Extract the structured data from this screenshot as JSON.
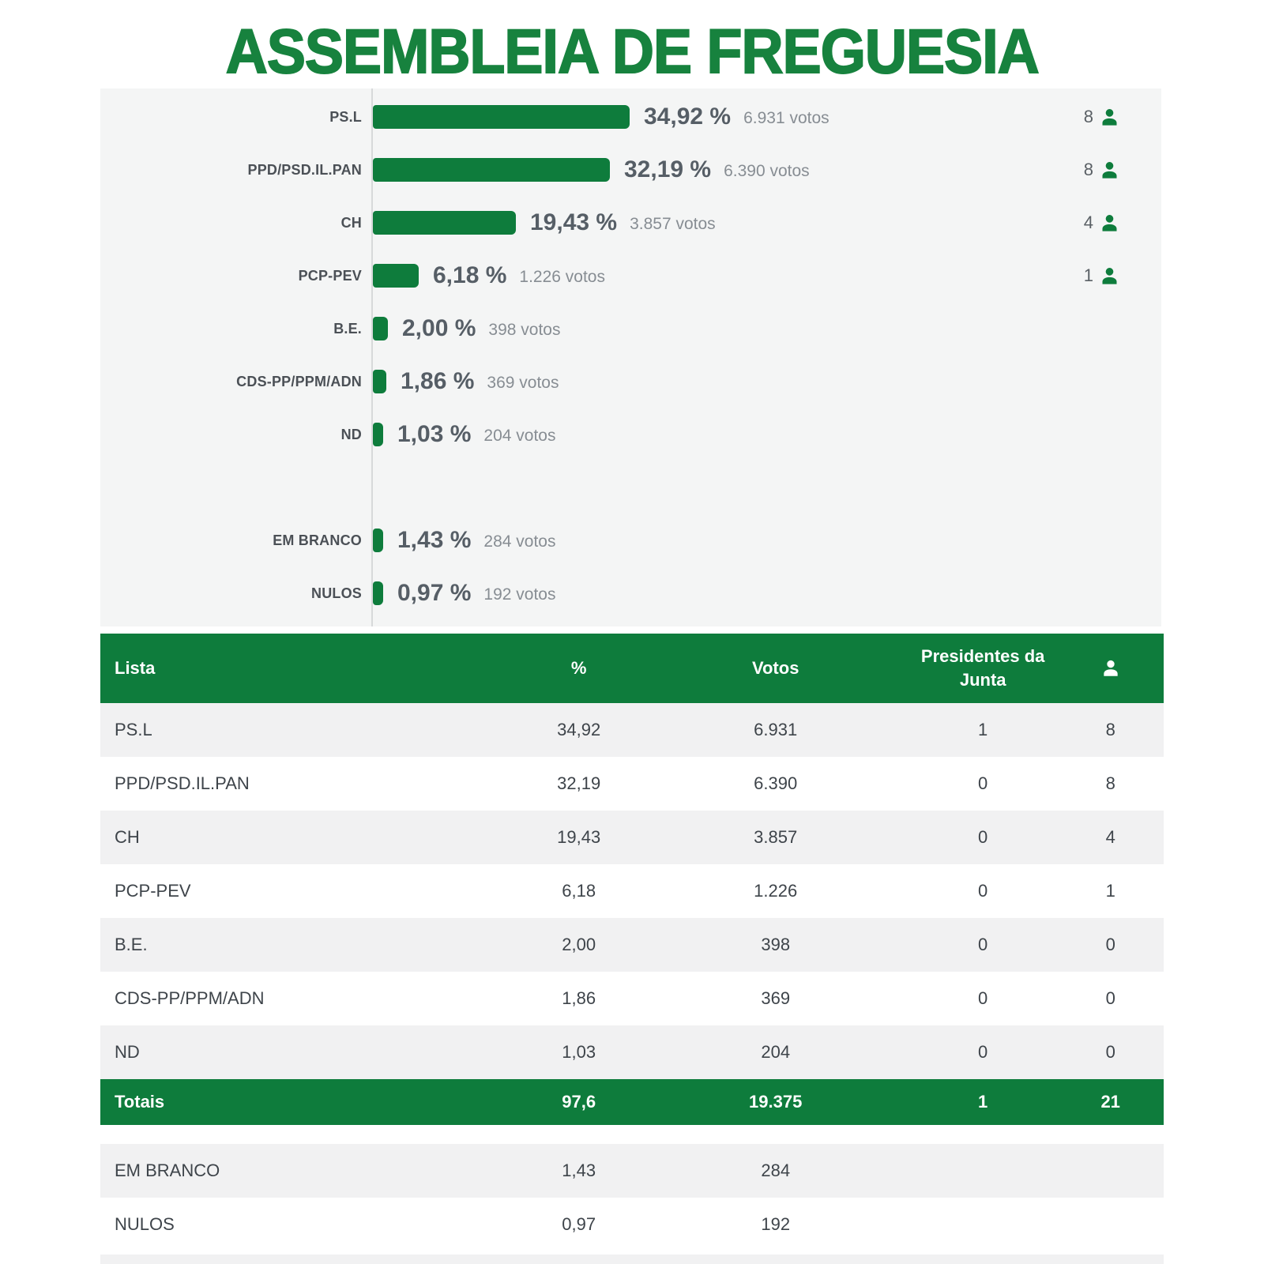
{
  "title": "ASSEMBLEIA DE FREGUESIA",
  "colors": {
    "green": "#0e7c3c",
    "title_green": "#17823e",
    "panel_bg": "#f4f5f5",
    "zebra_gray": "#f1f1f2",
    "pct_text": "#565e66",
    "votes_text": "#878d93"
  },
  "chart_data": {
    "type": "bar",
    "orientation": "horizontal",
    "title": "ASSEMBLEIA DE FREGUESIA",
    "value_unit": "percent",
    "xlim": [
      0,
      40
    ],
    "grid": false,
    "legend": "none",
    "categories": [
      "PS.L",
      "PPD/PSD.IL.PAN",
      "CH",
      "PCP-PEV",
      "B.E.",
      "CDS-PP/PPM/ADN",
      "ND",
      "EM BRANCO",
      "NULOS"
    ],
    "values": [
      34.92,
      32.19,
      19.43,
      6.18,
      2.0,
      1.86,
      1.03,
      1.43,
      0.97
    ],
    "votes": [
      6931,
      6390,
      3857,
      1226,
      398,
      369,
      204,
      284,
      192
    ],
    "seats": [
      8,
      8,
      4,
      1,
      null,
      null,
      null,
      null,
      null
    ]
  },
  "chart": {
    "bars": [
      {
        "label": "PS.L",
        "value": 34.92,
        "pct_label": "34,92 %",
        "votes_label": "6.931 votos",
        "seats": "8",
        "slot": 0
      },
      {
        "label": "PPD/PSD.IL.PAN",
        "value": 32.19,
        "pct_label": "32,19 %",
        "votes_label": "6.390 votos",
        "seats": "8",
        "slot": 1
      },
      {
        "label": "CH",
        "value": 19.43,
        "pct_label": "19,43 %",
        "votes_label": "3.857 votos",
        "seats": "4",
        "slot": 2
      },
      {
        "label": "PCP-PEV",
        "value": 6.18,
        "pct_label": "6,18 %",
        "votes_label": "1.226 votos",
        "seats": "1",
        "slot": 3
      },
      {
        "label": "B.E.",
        "value": 2.0,
        "pct_label": "2,00 %",
        "votes_label": "398 votos",
        "seats": null,
        "slot": 4
      },
      {
        "label": "CDS-PP/PPM/ADN",
        "value": 1.86,
        "pct_label": "1,86 %",
        "votes_label": "369 votos",
        "seats": null,
        "slot": 5
      },
      {
        "label": "ND",
        "value": 1.03,
        "pct_label": "1,03 %",
        "votes_label": "204 votos",
        "seats": null,
        "slot": 6
      },
      {
        "label": "EM BRANCO",
        "value": 1.43,
        "pct_label": "1,43 %",
        "votes_label": "284 votos",
        "seats": null,
        "slot": 8
      },
      {
        "label": "NULOS",
        "value": 0.97,
        "pct_label": "0,97 %",
        "votes_label": "192 votos",
        "seats": null,
        "slot": 9
      }
    ]
  },
  "table": {
    "headers": {
      "lista": "Lista",
      "pct": "%",
      "votos": "Votos",
      "presidentes": "Presidentes da Junta",
      "seats_icon": "person-icon"
    },
    "rows": [
      {
        "lista": "PS.L",
        "pct": "34,92",
        "votos": "6.931",
        "presidentes": "1",
        "seats": "8"
      },
      {
        "lista": "PPD/PSD.IL.PAN",
        "pct": "32,19",
        "votos": "6.390",
        "presidentes": "0",
        "seats": "8"
      },
      {
        "lista": "CH",
        "pct": "19,43",
        "votos": "3.857",
        "presidentes": "0",
        "seats": "4"
      },
      {
        "lista": "PCP-PEV",
        "pct": "6,18",
        "votos": "1.226",
        "presidentes": "0",
        "seats": "1"
      },
      {
        "lista": "B.E.",
        "pct": "2,00",
        "votos": "398",
        "presidentes": "0",
        "seats": "0"
      },
      {
        "lista": "CDS-PP/PPM/ADN",
        "pct": "1,86",
        "votos": "369",
        "presidentes": "0",
        "seats": "0"
      },
      {
        "lista": "ND",
        "pct": "1,03",
        "votos": "204",
        "presidentes": "0",
        "seats": "0"
      }
    ],
    "totals": {
      "lista": "Totais",
      "pct": "97,6",
      "votos": "19.375",
      "presidentes": "1",
      "seats": "21"
    },
    "extra_rows": [
      {
        "lista": "EM BRANCO",
        "pct": "1,43",
        "votos": "284",
        "presidentes": "",
        "seats": ""
      },
      {
        "lista": "NULOS",
        "pct": "0,97",
        "votos": "192",
        "presidentes": "",
        "seats": ""
      }
    ]
  }
}
